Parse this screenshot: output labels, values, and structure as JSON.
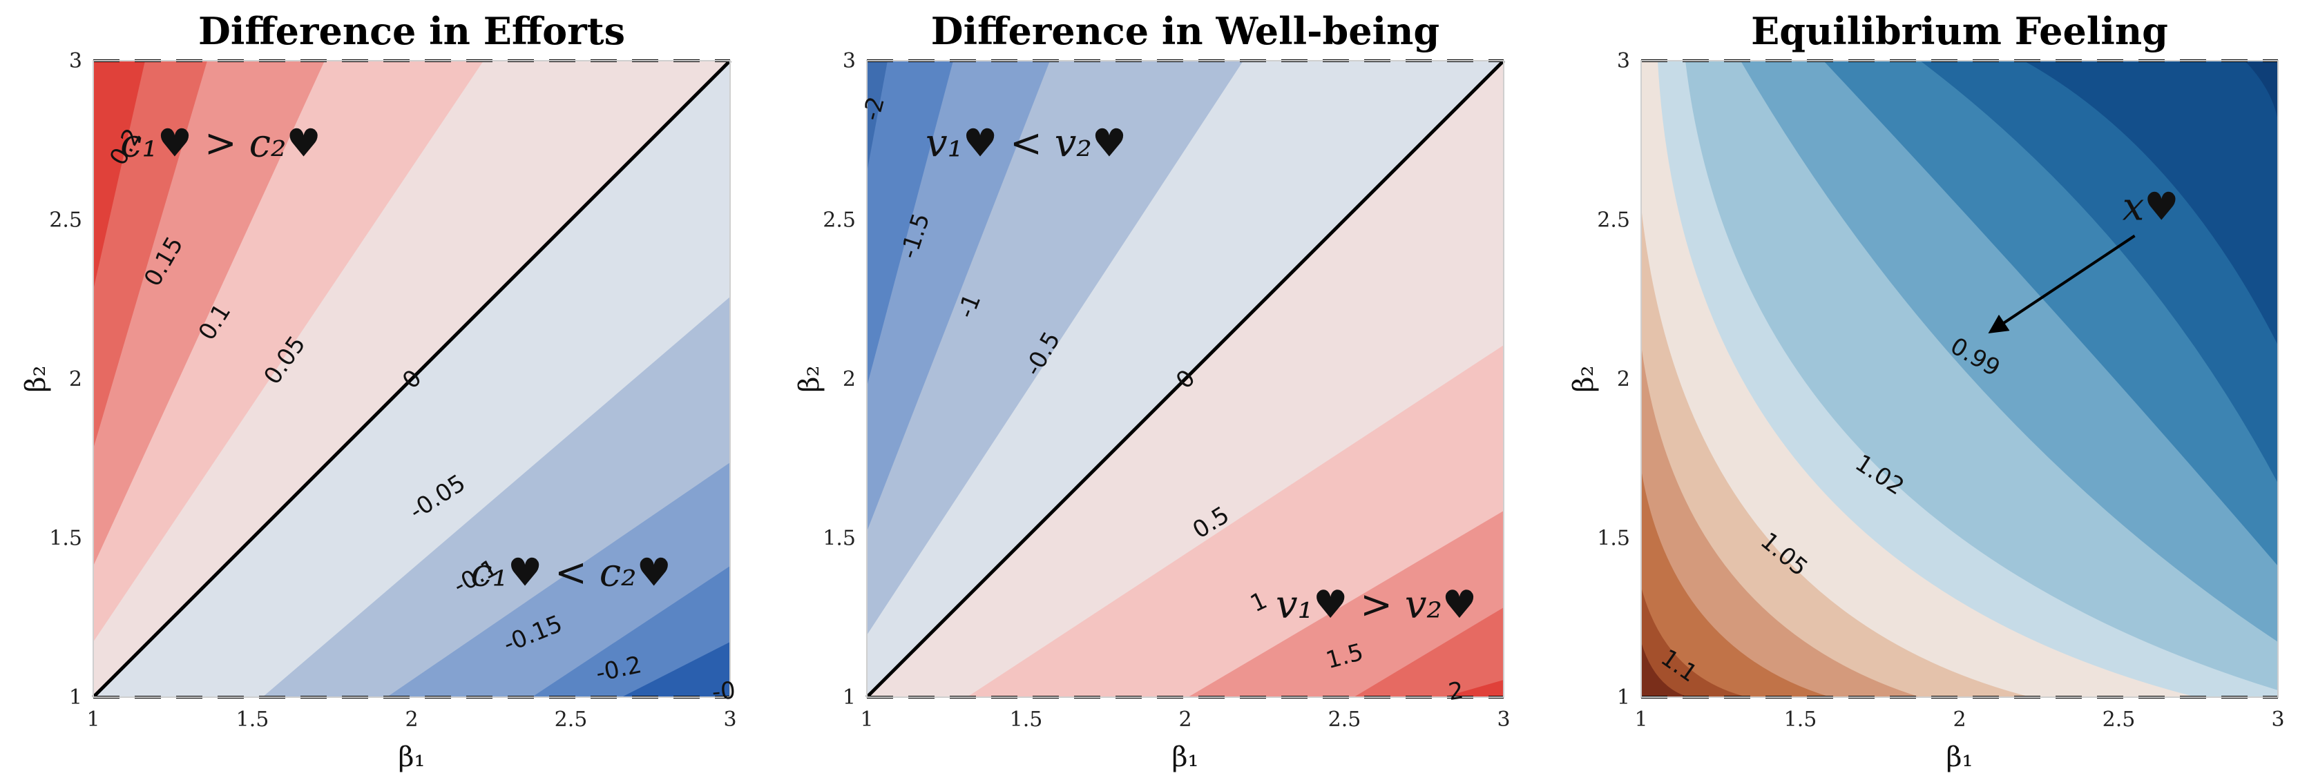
{
  "chart_data": [
    {
      "type": "contour",
      "title": "Difference in Efforts",
      "xlabel": "β₁",
      "ylabel": "β₂",
      "xlim": [
        1,
        3
      ],
      "ylim": [
        1,
        3
      ],
      "xticks": [
        "1",
        "1.5",
        "2",
        "2.5",
        "3"
      ],
      "yticks": [
        "1",
        "1.5",
        "2",
        "2.5",
        "3"
      ],
      "levels": [
        0.2,
        0.15,
        0.1,
        0.05,
        0,
        -0.05,
        -0.1,
        -0.15,
        -0.2
      ],
      "level_colors": [
        "#e0413a",
        "#e66a62",
        "#ed9590",
        "#f4c4c1",
        "#efdfde",
        "#dae1ea",
        "#aebfd9",
        "#84a2d0",
        "#5a85c4",
        "#2a5fae"
      ],
      "contour_labels": [
        {
          "text": "0.2",
          "x": 1.1,
          "y": 2.73,
          "angle": -60
        },
        {
          "text": "0.15",
          "x": 1.22,
          "y": 2.37,
          "angle": -60
        },
        {
          "text": "0.1",
          "x": 1.38,
          "y": 2.18,
          "angle": -58
        },
        {
          "text": "0.05",
          "x": 1.6,
          "y": 2.06,
          "angle": -55
        },
        {
          "text": "0",
          "x": 2.0,
          "y": 2.0,
          "angle": -45
        },
        {
          "text": "-0.05",
          "x": 2.08,
          "y": 1.63,
          "angle": -33
        },
        {
          "text": "-0.1",
          "x": 2.2,
          "y": 1.38,
          "angle": -28
        },
        {
          "text": "-0.15",
          "x": 2.38,
          "y": 1.2,
          "angle": -22
        },
        {
          "text": "-0.2",
          "x": 2.65,
          "y": 1.09,
          "angle": -12
        },
        {
          "text": "-0",
          "x": 2.98,
          "y": 1.02,
          "angle": -5
        }
      ],
      "annotations": [
        {
          "text": "c₁♥ > c₂♥",
          "x": 1.4,
          "y": 2.7
        },
        {
          "text": "c₁♥ < c₂♥",
          "x": 2.5,
          "y": 1.35
        }
      ]
    },
    {
      "type": "contour",
      "title": "Difference in Well-being",
      "xlabel": "β₁",
      "ylabel": "β₂",
      "xlim": [
        1,
        3
      ],
      "ylim": [
        1,
        3
      ],
      "xticks": [
        "1",
        "1.5",
        "2",
        "2.5",
        "3"
      ],
      "yticks": [
        "1",
        "1.5",
        "2",
        "2.5",
        "3"
      ],
      "levels": [
        -2,
        -1.5,
        -1,
        -0.5,
        0,
        0.5,
        1,
        1.5,
        2
      ],
      "level_colors": [
        "#3e6db0",
        "#5a85c4",
        "#84a2d0",
        "#aebfd9",
        "#dae1ea",
        "#efdfde",
        "#f4c4c1",
        "#ed9590",
        "#e66a62",
        "#e0413a"
      ],
      "contour_labels": [
        {
          "text": "-2",
          "x": 1.02,
          "y": 2.85,
          "angle": -75
        },
        {
          "text": "-1.5",
          "x": 1.15,
          "y": 2.45,
          "angle": -72
        },
        {
          "text": "-1",
          "x": 1.32,
          "y": 2.23,
          "angle": -68
        },
        {
          "text": "-0.5",
          "x": 1.55,
          "y": 2.08,
          "angle": -60
        },
        {
          "text": "0",
          "x": 2.0,
          "y": 2.0,
          "angle": -45
        },
        {
          "text": "0.5",
          "x": 2.08,
          "y": 1.55,
          "angle": -32
        },
        {
          "text": "1",
          "x": 2.23,
          "y": 1.3,
          "angle": -25
        },
        {
          "text": "1.5",
          "x": 2.5,
          "y": 1.13,
          "angle": -15
        },
        {
          "text": "2",
          "x": 2.85,
          "y": 1.02,
          "angle": -8
        }
      ],
      "annotations": [
        {
          "text": "v₁♥ < v₂♥",
          "x": 1.5,
          "y": 2.7
        },
        {
          "text": "v₁♥ > v₂♥",
          "x": 2.6,
          "y": 1.25
        }
      ]
    },
    {
      "type": "contour",
      "title": "Equilibrium Feeling",
      "xlabel": "β₁",
      "ylabel": "β₂",
      "xlim": [
        1,
        3
      ],
      "ylim": [
        1,
        3
      ],
      "xticks": [
        "1",
        "1.5",
        "2",
        "2.5",
        "3"
      ],
      "yticks": [
        "1",
        "1.5",
        "2",
        "2.5",
        "3"
      ],
      "level_colors": [
        "#7a2e1a",
        "#a4502c",
        "#c17348",
        "#d49a7c",
        "#e4c2ab",
        "#eee3dc",
        "#c6dbe7",
        "#9fc5d9",
        "#6fa7c8",
        "#3d84b2",
        "#22689f",
        "#134f8b",
        "#0e3f78"
      ],
      "contour_labels": [
        {
          "text": "1.1",
          "x": 1.12,
          "y": 1.1,
          "angle": 35
        },
        {
          "text": "1.05",
          "x": 1.45,
          "y": 1.45,
          "angle": 40
        },
        {
          "text": "1.02",
          "x": 1.75,
          "y": 1.7,
          "angle": 33
        },
        {
          "text": "0.99",
          "x": 2.05,
          "y": 2.07,
          "angle": 30
        }
      ],
      "annotations": [
        {
          "text": "x♥",
          "x": 2.6,
          "y": 2.5
        }
      ],
      "arrow": {
        "from": [
          2.55,
          2.45
        ],
        "to": [
          2.1,
          2.15
        ]
      }
    }
  ]
}
